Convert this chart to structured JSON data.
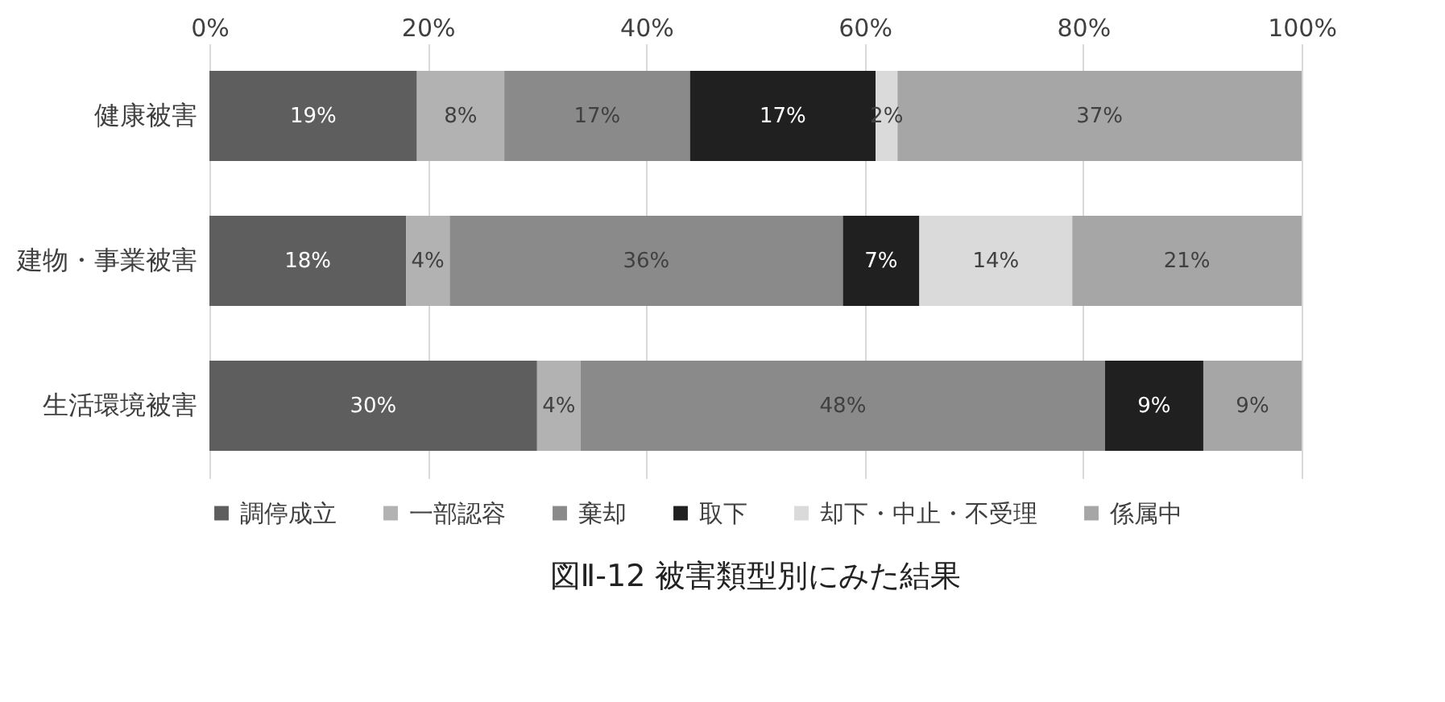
{
  "chart_data": {
    "type": "bar",
    "orientation": "horizontal",
    "stacked": true,
    "title": "図Ⅱ-12 被害類型別にみた結果",
    "categories": [
      "健康被害",
      "建物・事業被害",
      "生活環境被害"
    ],
    "series": [
      {
        "name": "調停成立",
        "color": "#5e5e5e",
        "values": [
          19,
          18,
          30
        ],
        "value_labels": [
          "19%",
          "18%",
          "30%"
        ]
      },
      {
        "name": "一部認容",
        "color": "#b2b2b2",
        "values": [
          8,
          4,
          4
        ],
        "value_labels": [
          "8%",
          "4%",
          "4%"
        ]
      },
      {
        "name": "棄却",
        "color": "#8a8a8a",
        "values": [
          17,
          36,
          48
        ],
        "value_labels": [
          "17%",
          "36%",
          "48%"
        ]
      },
      {
        "name": "取下",
        "color": "#202020",
        "values": [
          17,
          7,
          9
        ],
        "value_labels": [
          "17%",
          "7%",
          "9%"
        ]
      },
      {
        "name": "却下・中止・不受理",
        "color": "#dadada",
        "values": [
          2,
          14,
          null
        ],
        "value_labels": [
          "2%",
          "14%",
          null
        ]
      },
      {
        "name": "係属中",
        "color": "#a6a6a6",
        "values": [
          37,
          21,
          9
        ],
        "value_labels": [
          "37%",
          "21%",
          "9%"
        ]
      }
    ],
    "xlim": [
      0,
      100
    ],
    "xticks": [
      {
        "value": 0,
        "label": "0%"
      },
      {
        "value": 20,
        "label": "20%"
      },
      {
        "value": 40,
        "label": "40%"
      },
      {
        "value": 60,
        "label": "60%"
      },
      {
        "value": 80,
        "label": "80%"
      },
      {
        "value": 100,
        "label": "100%"
      }
    ],
    "grid": "x",
    "legend": "bottom"
  }
}
